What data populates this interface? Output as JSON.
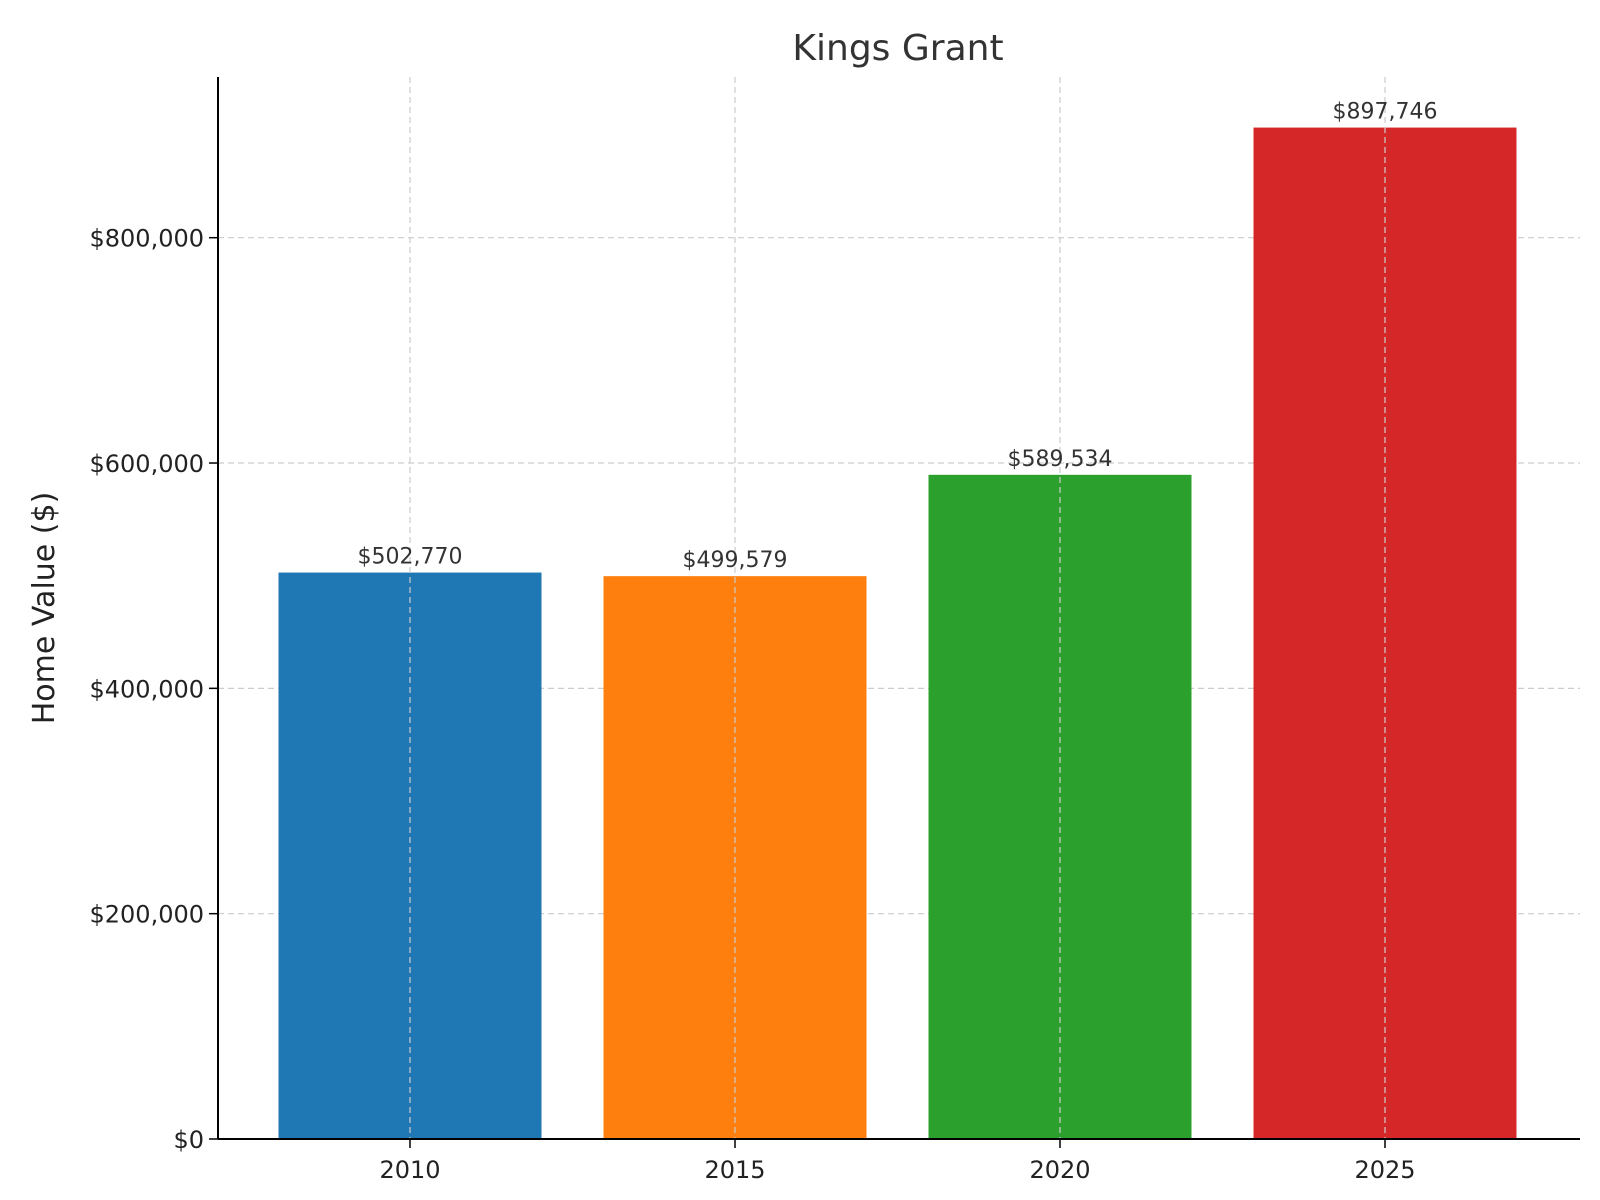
{
  "chart_data": {
    "type": "bar",
    "title": "Kings Grant",
    "xlabel": "",
    "ylabel": "Home Value ($)",
    "categories": [
      "2010",
      "2015",
      "2020",
      "2025"
    ],
    "values": [
      502770,
      499579,
      589534,
      897746
    ],
    "value_labels": [
      "$502,770",
      "$499,579",
      "$589,534",
      "$897,746"
    ],
    "colors": [
      "#1f77b4",
      "#ff7f0e",
      "#2ca02c",
      "#d62728"
    ],
    "ylim": [
      0,
      942633
    ],
    "yticks": [
      0,
      200000,
      400000,
      600000,
      800000
    ],
    "ytick_labels": [
      "$0",
      "$200,000",
      "$400,000",
      "$600,000",
      "$800,000"
    ],
    "grid": true
  }
}
